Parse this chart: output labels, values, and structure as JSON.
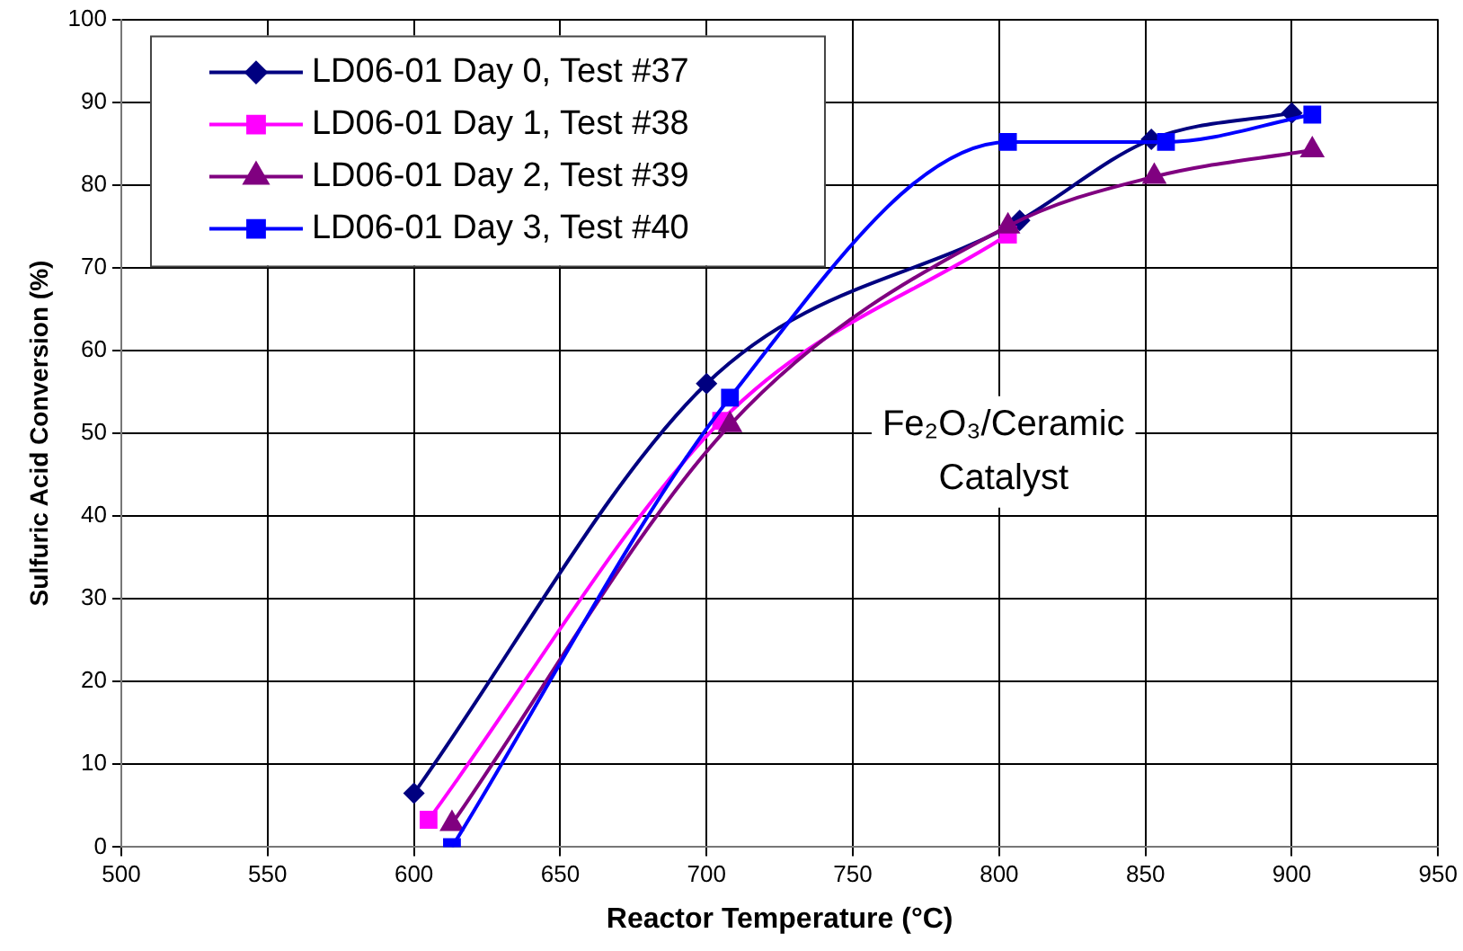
{
  "chart_data": {
    "type": "line",
    "xlabel": "Reactor Temperature (°C)",
    "ylabel": "Sulfuric Acid Conversion (%)",
    "xlim": [
      500,
      950
    ],
    "xticks": [
      500,
      550,
      600,
      650,
      700,
      750,
      800,
      850,
      900,
      950
    ],
    "ylim": [
      0,
      100
    ],
    "yticks": [
      0,
      10,
      20,
      30,
      40,
      50,
      60,
      70,
      80,
      90,
      100
    ],
    "grid": true,
    "legend": "top left",
    "series": [
      {
        "name": "LD06-01 Day 0, Test #37",
        "color": "#000080",
        "marker": "diamond",
        "x": [
          600,
          700,
          807,
          852,
          900
        ],
        "values": [
          6.5,
          56,
          75.7,
          85.5,
          88.7
        ]
      },
      {
        "name": "LD06-01 Day 1, Test #38",
        "color": "#ff00ff",
        "marker": "square",
        "x": [
          605,
          705,
          803
        ],
        "values": [
          3.3,
          51.5,
          74
        ]
      },
      {
        "name": "LD06-01 Day 2, Test #39",
        "color": "#800080",
        "marker": "triangle",
        "x": [
          613,
          708,
          803,
          853,
          907
        ],
        "values": [
          2.8,
          51,
          75,
          81,
          84.2
        ]
      },
      {
        "name": "LD06-01 Day 3, Test #40",
        "color": "#0000ff",
        "marker": "square",
        "x": [
          613,
          708,
          803,
          857,
          907
        ],
        "values": [
          0,
          54.3,
          85.2,
          85.2,
          88.5
        ]
      }
    ],
    "annotations": [
      "Fe₂O₃/Ceramic\nCatalyst"
    ]
  }
}
